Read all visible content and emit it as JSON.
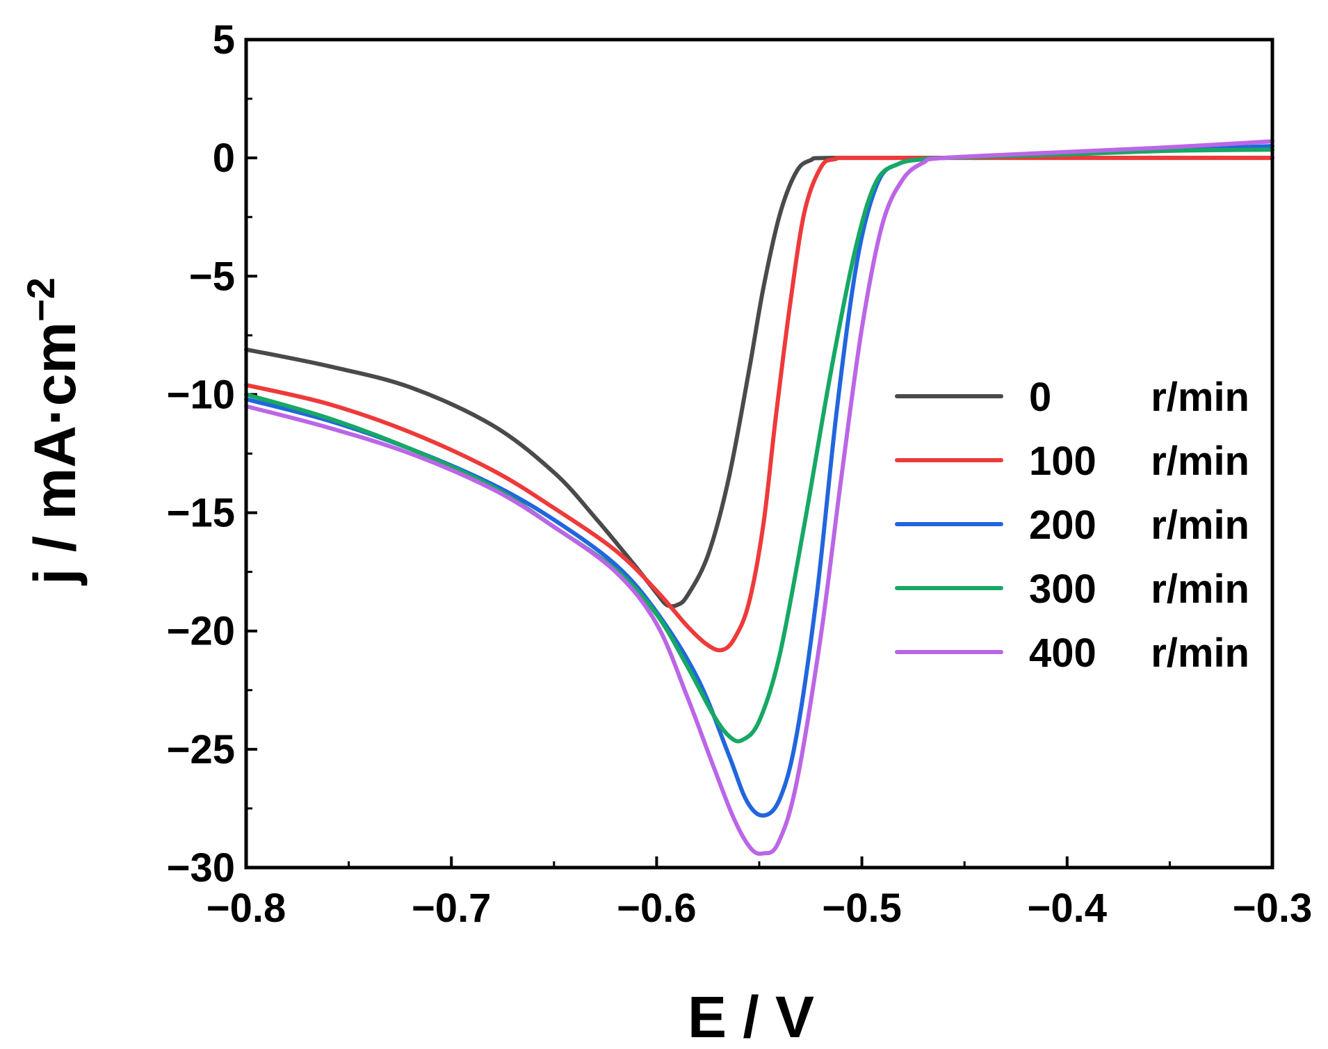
{
  "chart_data": {
    "type": "line",
    "title": "",
    "xlabel": "E / V",
    "ylabel_main": "j / mA·cm",
    "ylabel_sup": "−2",
    "xlim": [
      -0.8,
      -0.3
    ],
    "ylim": [
      -30,
      5
    ],
    "xticks": [
      -0.8,
      -0.7,
      -0.6,
      -0.5,
      -0.4,
      -0.3
    ],
    "xtick_labels": [
      "−0.8",
      "−0.7",
      "−0.6",
      "−0.5",
      "−0.4",
      "−0.3"
    ],
    "yticks": [
      5,
      0,
      -5,
      -10,
      -15,
      -20,
      -25,
      -30
    ],
    "ytick_labels": [
      "5",
      "0",
      "−5",
      "−10",
      "−15",
      "−20",
      "−25",
      "−30"
    ],
    "grid": false,
    "legend_position": "right",
    "series": [
      {
        "name": "0 r/min",
        "label_num": "0",
        "label_unit": "r/min",
        "color": "#4a4a4a",
        "points": [
          [
            -0.8,
            -8.1
          ],
          [
            -0.76,
            -8.8
          ],
          [
            -0.72,
            -9.7
          ],
          [
            -0.68,
            -11.3
          ],
          [
            -0.65,
            -13.3
          ],
          [
            -0.63,
            -15.2
          ],
          [
            -0.61,
            -17.3
          ],
          [
            -0.6,
            -18.4
          ],
          [
            -0.595,
            -18.9
          ],
          [
            -0.59,
            -18.9
          ],
          [
            -0.585,
            -18.5
          ],
          [
            -0.575,
            -16.8
          ],
          [
            -0.565,
            -13.6
          ],
          [
            -0.555,
            -9.0
          ],
          [
            -0.548,
            -5.5
          ],
          [
            -0.54,
            -2.4
          ],
          [
            -0.532,
            -0.6
          ],
          [
            -0.525,
            -0.1
          ],
          [
            -0.515,
            0.0
          ],
          [
            -0.45,
            0.0
          ],
          [
            -0.35,
            0.0
          ],
          [
            -0.3,
            0.0
          ]
        ]
      },
      {
        "name": "100 r/min",
        "label_num": "100",
        "label_unit": "r/min",
        "color": "#ee3a3a",
        "points": [
          [
            -0.8,
            -9.6
          ],
          [
            -0.76,
            -10.4
          ],
          [
            -0.72,
            -11.6
          ],
          [
            -0.68,
            -13.2
          ],
          [
            -0.65,
            -14.8
          ],
          [
            -0.62,
            -16.6
          ],
          [
            -0.6,
            -18.3
          ],
          [
            -0.585,
            -19.8
          ],
          [
            -0.575,
            -20.6
          ],
          [
            -0.568,
            -20.8
          ],
          [
            -0.562,
            -20.3
          ],
          [
            -0.555,
            -18.8
          ],
          [
            -0.548,
            -15.5
          ],
          [
            -0.542,
            -11.0
          ],
          [
            -0.535,
            -6.2
          ],
          [
            -0.528,
            -2.3
          ],
          [
            -0.52,
            -0.4
          ],
          [
            -0.513,
            -0.05
          ],
          [
            -0.5,
            0.0
          ],
          [
            -0.4,
            0.0
          ],
          [
            -0.3,
            0.0
          ]
        ]
      },
      {
        "name": "200 r/min",
        "label_num": "200",
        "label_unit": "r/min",
        "color": "#2266dd",
        "points": [
          [
            -0.8,
            -10.2
          ],
          [
            -0.76,
            -11.1
          ],
          [
            -0.72,
            -12.3
          ],
          [
            -0.68,
            -13.8
          ],
          [
            -0.65,
            -15.3
          ],
          [
            -0.62,
            -17.2
          ],
          [
            -0.6,
            -19.2
          ],
          [
            -0.58,
            -22.0
          ],
          [
            -0.565,
            -25.2
          ],
          [
            -0.556,
            -27.2
          ],
          [
            -0.548,
            -27.8
          ],
          [
            -0.54,
            -27.1
          ],
          [
            -0.532,
            -24.5
          ],
          [
            -0.522,
            -18.5
          ],
          [
            -0.512,
            -10.5
          ],
          [
            -0.502,
            -4.2
          ],
          [
            -0.492,
            -1.0
          ],
          [
            -0.482,
            -0.25
          ],
          [
            -0.47,
            -0.05
          ],
          [
            -0.46,
            0.0
          ],
          [
            -0.4,
            0.2
          ],
          [
            -0.35,
            0.35
          ],
          [
            -0.3,
            0.5
          ]
        ]
      },
      {
        "name": "300 r/min",
        "label_num": "300",
        "label_unit": "r/min",
        "color": "#16a864",
        "points": [
          [
            -0.8,
            -10.0
          ],
          [
            -0.76,
            -11.0
          ],
          [
            -0.72,
            -12.3
          ],
          [
            -0.68,
            -13.9
          ],
          [
            -0.65,
            -15.6
          ],
          [
            -0.62,
            -17.4
          ],
          [
            -0.6,
            -19.3
          ],
          [
            -0.585,
            -21.5
          ],
          [
            -0.572,
            -23.6
          ],
          [
            -0.564,
            -24.5
          ],
          [
            -0.558,
            -24.6
          ],
          [
            -0.55,
            -23.8
          ],
          [
            -0.54,
            -21.0
          ],
          [
            -0.528,
            -15.5
          ],
          [
            -0.515,
            -9.0
          ],
          [
            -0.503,
            -3.8
          ],
          [
            -0.493,
            -1.0
          ],
          [
            -0.482,
            -0.25
          ],
          [
            -0.47,
            -0.05
          ],
          [
            -0.46,
            0.0
          ],
          [
            -0.4,
            0.15
          ],
          [
            -0.35,
            0.3
          ],
          [
            -0.3,
            0.35
          ]
        ]
      },
      {
        "name": "400 r/min",
        "label_num": "400",
        "label_unit": "r/min",
        "color": "#bb66e6",
        "points": [
          [
            -0.8,
            -10.5
          ],
          [
            -0.76,
            -11.4
          ],
          [
            -0.72,
            -12.5
          ],
          [
            -0.68,
            -14.0
          ],
          [
            -0.65,
            -15.6
          ],
          [
            -0.62,
            -17.5
          ],
          [
            -0.6,
            -19.7
          ],
          [
            -0.585,
            -22.8
          ],
          [
            -0.572,
            -25.8
          ],
          [
            -0.562,
            -28.0
          ],
          [
            -0.554,
            -29.2
          ],
          [
            -0.548,
            -29.4
          ],
          [
            -0.541,
            -29.0
          ],
          [
            -0.532,
            -26.5
          ],
          [
            -0.52,
            -20.2
          ],
          [
            -0.51,
            -13.5
          ],
          [
            -0.5,
            -7.2
          ],
          [
            -0.49,
            -2.8
          ],
          [
            -0.48,
            -0.9
          ],
          [
            -0.47,
            -0.2
          ],
          [
            -0.46,
            0.0
          ],
          [
            -0.4,
            0.25
          ],
          [
            -0.35,
            0.45
          ],
          [
            -0.3,
            0.7
          ]
        ]
      }
    ]
  }
}
